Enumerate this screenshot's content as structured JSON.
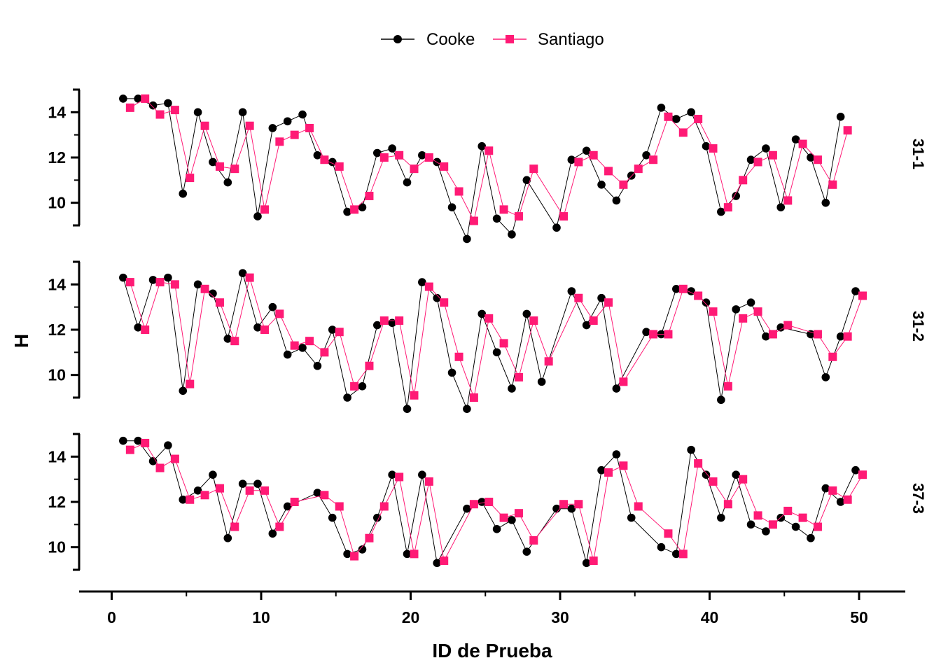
{
  "chart_data": {
    "type": "line",
    "xlabel": "ID de Prueba",
    "ylabel": "H",
    "xlim": [
      -2,
      53
    ],
    "xticks": [
      0,
      10,
      20,
      30,
      40,
      50
    ],
    "ylim": [
      9,
      15
    ],
    "yticks": [
      10,
      12,
      14
    ],
    "grid": false,
    "legend_position": "top-center",
    "colors": {
      "Cooke": "#000000",
      "Santiago": "#ff1a75"
    },
    "markers": {
      "Cooke": "circle",
      "Santiago": "square"
    },
    "x": [
      1,
      2,
      3,
      4,
      5,
      6,
      7,
      8,
      9,
      10,
      11,
      12,
      13,
      14,
      15,
      16,
      17,
      18,
      19,
      20,
      21,
      22,
      23,
      24,
      25,
      26,
      27,
      28,
      29,
      30,
      31,
      32,
      33,
      34,
      35,
      36,
      37,
      38,
      39,
      40,
      41,
      42,
      43,
      44,
      45,
      46,
      47,
      48,
      49,
      50
    ],
    "panels": [
      {
        "label": "31-1",
        "series": [
          {
            "name": "Cooke",
            "values": [
              14.6,
              14.6,
              14.3,
              14.4,
              10.4,
              14.0,
              11.8,
              10.9,
              14.0,
              9.4,
              13.3,
              13.6,
              13.9,
              12.1,
              11.8,
              9.6,
              9.8,
              12.2,
              12.4,
              10.9,
              12.1,
              11.8,
              9.8,
              8.4,
              12.5,
              9.3,
              8.6,
              11.0,
              null,
              8.9,
              11.9,
              12.3,
              10.8,
              10.1,
              11.2,
              12.1,
              14.2,
              13.7,
              14.0,
              12.5,
              9.6,
              10.3,
              11.9,
              12.4,
              9.8,
              12.8,
              12.0,
              10.0,
              13.8,
              null
            ]
          },
          {
            "name": "Santiago",
            "values": [
              14.2,
              14.6,
              13.9,
              14.1,
              11.1,
              13.4,
              11.6,
              11.5,
              13.4,
              9.7,
              12.7,
              13.0,
              13.3,
              11.9,
              11.6,
              9.7,
              10.3,
              12.0,
              12.1,
              11.5,
              12.0,
              11.6,
              10.5,
              9.2,
              12.3,
              9.7,
              9.4,
              11.5,
              null,
              9.4,
              11.8,
              12.1,
              11.4,
              10.8,
              11.5,
              11.9,
              13.8,
              13.1,
              13.7,
              12.4,
              9.8,
              11.0,
              11.8,
              12.1,
              10.1,
              12.6,
              11.9,
              10.8,
              13.2,
              null
            ]
          }
        ]
      },
      {
        "label": "31-2",
        "series": [
          {
            "name": "Cooke",
            "values": [
              14.3,
              12.1,
              14.2,
              14.3,
              9.3,
              14.0,
              13.6,
              11.6,
              14.5,
              12.1,
              13.0,
              10.9,
              11.2,
              10.4,
              12.0,
              9.0,
              9.5,
              12.2,
              12.3,
              8.5,
              14.1,
              13.4,
              10.1,
              8.5,
              12.7,
              11.0,
              9.4,
              12.7,
              9.7,
              null,
              13.7,
              12.2,
              13.4,
              9.4,
              null,
              11.9,
              11.8,
              13.8,
              13.7,
              13.2,
              8.9,
              12.9,
              13.2,
              11.7,
              12.1,
              null,
              11.8,
              9.9,
              11.7,
              13.7
            ]
          },
          {
            "name": "Santiago",
            "values": [
              14.1,
              12.0,
              14.1,
              14.0,
              9.6,
              13.8,
              13.2,
              11.5,
              14.3,
              12.0,
              12.7,
              11.3,
              11.5,
              11.0,
              11.9,
              9.5,
              10.4,
              12.4,
              12.4,
              9.1,
              13.9,
              13.2,
              10.8,
              9.0,
              12.5,
              11.4,
              9.9,
              12.4,
              10.6,
              null,
              13.4,
              12.4,
              13.2,
              9.7,
              null,
              11.8,
              11.8,
              13.8,
              13.5,
              12.8,
              9.5,
              12.5,
              12.8,
              11.8,
              12.2,
              null,
              11.8,
              10.8,
              11.7,
              13.5
            ]
          }
        ]
      },
      {
        "label": "37-3",
        "series": [
          {
            "name": "Cooke",
            "values": [
              14.7,
              14.7,
              13.8,
              14.5,
              12.1,
              12.5,
              13.2,
              10.4,
              12.8,
              12.8,
              10.6,
              11.8,
              null,
              12.4,
              11.3,
              9.7,
              9.9,
              11.3,
              13.2,
              9.7,
              13.2,
              9.3,
              null,
              11.7,
              12.0,
              10.8,
              11.2,
              9.8,
              null,
              11.7,
              11.7,
              9.3,
              13.4,
              14.1,
              11.3,
              null,
              10.0,
              9.7,
              14.3,
              13.2,
              11.3,
              13.2,
              11.0,
              10.7,
              11.3,
              10.9,
              10.4,
              12.6,
              12.0,
              13.4
            ]
          },
          {
            "name": "Santiago",
            "values": [
              14.3,
              14.6,
              13.5,
              13.9,
              12.1,
              12.3,
              12.6,
              10.9,
              12.5,
              12.5,
              10.9,
              12.0,
              null,
              12.3,
              11.8,
              9.6,
              10.4,
              11.8,
              13.1,
              9.7,
              12.9,
              9.4,
              null,
              11.9,
              12.0,
              11.3,
              11.5,
              10.3,
              null,
              11.9,
              11.9,
              9.4,
              13.3,
              13.6,
              11.8,
              null,
              10.6,
              9.7,
              13.7,
              12.9,
              11.9,
              13.0,
              11.4,
              11.0,
              11.6,
              11.3,
              10.9,
              12.5,
              12.1,
              13.2
            ]
          }
        ]
      }
    ]
  }
}
